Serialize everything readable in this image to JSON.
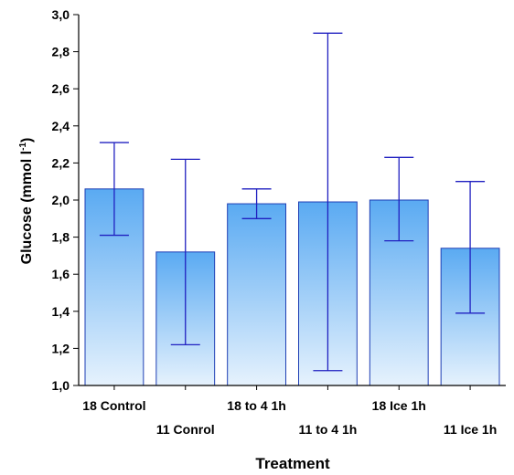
{
  "chart_data": {
    "type": "bar",
    "categories": [
      "18 Control",
      "11 Conrol",
      "18 to 4 1h",
      "11 to 4 1h",
      "18 Ice 1h",
      "11 Ice 1h"
    ],
    "values": [
      2.06,
      1.72,
      1.98,
      1.99,
      2.0,
      1.74
    ],
    "error_high": [
      2.31,
      2.22,
      2.06,
      2.9,
      2.23,
      2.1
    ],
    "error_low": [
      1.81,
      1.22,
      1.9,
      1.08,
      1.78,
      1.39
    ],
    "xlabel": "Treatment",
    "ylabel": {
      "main": "Glucose (mmol l",
      "sup": "-1",
      "close": ")"
    },
    "ylim": [
      1.0,
      3.0
    ],
    "yticks": [
      "1,0",
      "1,2",
      "1,4",
      "1,6",
      "1,8",
      "2,0",
      "2,2",
      "2,4",
      "2,6",
      "2,8",
      "3,0"
    ],
    "grid": false,
    "colors": {
      "bar_top": "#5aaaf2",
      "bar_bottom": "#e6f2fd",
      "bar_edge": "#1f3fb4",
      "error": "#2020c0",
      "axis": "#000000"
    }
  }
}
